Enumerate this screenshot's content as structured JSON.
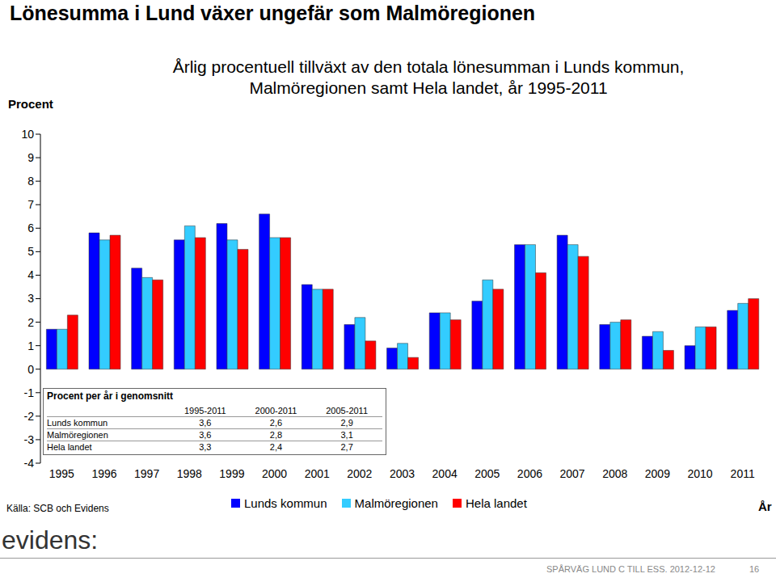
{
  "page": {
    "headline": "Lönesumma i Lund växer ungefär som Malmöregionen",
    "source": "Källa: SCB och Evidens",
    "logo": "evidens:",
    "footer": "SPÅRVÄG LUND C TILL ESS. 2012-12-12",
    "page_number": "16"
  },
  "chart_data": {
    "type": "bar",
    "title": "Årlig procentuell tillväxt av den totala lönesumman i Lunds kommun,\nMalmöregionen samt Hela landet, år 1995-2011",
    "y_label": "Procent",
    "x_label": "År",
    "categories": [
      "1995",
      "1996",
      "1997",
      "1998",
      "1999",
      "2000",
      "2001",
      "2002",
      "2003",
      "2004",
      "2005",
      "2006",
      "2007",
      "2008",
      "2009",
      "2010",
      "2011"
    ],
    "series": [
      {
        "name": "Lunds kommun",
        "color": "#0000ff",
        "values": [
          1.7,
          5.8,
          4.3,
          5.5,
          6.2,
          6.6,
          3.6,
          1.9,
          0.9,
          2.4,
          2.9,
          5.3,
          5.7,
          1.9,
          1.4,
          1.0,
          2.5
        ]
      },
      {
        "name": "Malmöregionen",
        "color": "#33ccff",
        "values": [
          1.7,
          5.5,
          3.9,
          6.1,
          5.5,
          5.6,
          3.4,
          2.2,
          1.1,
          2.4,
          3.8,
          5.3,
          5.3,
          2.0,
          1.6,
          1.8,
          2.8
        ]
      },
      {
        "name": "Hela landet",
        "color": "#ff0000",
        "values": [
          2.3,
          5.7,
          3.8,
          5.6,
          5.1,
          5.6,
          3.4,
          1.2,
          0.5,
          2.1,
          3.4,
          4.1,
          4.8,
          2.1,
          0.8,
          1.8,
          3.0
        ]
      }
    ],
    "ylim": [
      -4,
      10
    ],
    "yticks": [
      -4,
      -3,
      -2,
      -1,
      0,
      1,
      2,
      3,
      4,
      5,
      6,
      7,
      8,
      9,
      10
    ],
    "grid": false,
    "summary_table": {
      "title": "Procent per år i genomsnitt",
      "columns": [
        "1995-2011",
        "2000-2011",
        "2005-2011"
      ],
      "rows": [
        [
          "Lunds kommun",
          "3,6",
          "2,6",
          "2,9"
        ],
        [
          "Malmöregionen",
          "3,6",
          "2,8",
          "3,1"
        ],
        [
          "Hela landet",
          "3,3",
          "2,4",
          "2,7"
        ]
      ]
    }
  }
}
